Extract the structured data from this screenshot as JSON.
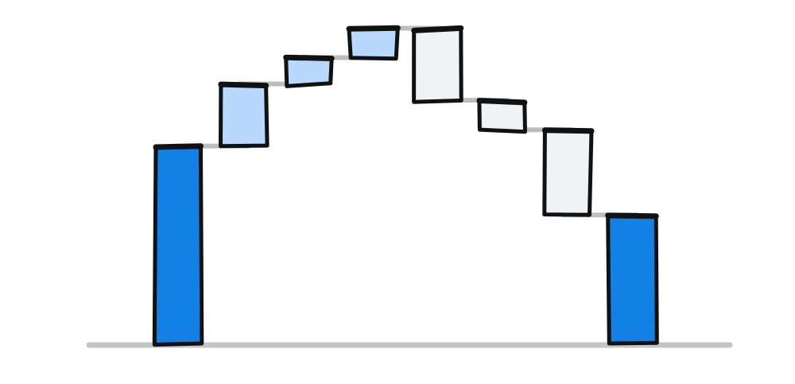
{
  "chart_data": {
    "type": "bar",
    "subtype": "waterfall",
    "style": "hand-drawn sketch",
    "title": "",
    "xlabel": "",
    "ylabel": "",
    "grid": false,
    "legend": "none",
    "ylim": [
      0,
      100
    ],
    "bars": [
      {
        "kind": "total",
        "start": 0,
        "end": 60
      },
      {
        "kind": "increase",
        "start": 60,
        "end": 79
      },
      {
        "kind": "increase",
        "start": 79,
        "end": 87
      },
      {
        "kind": "increase",
        "start": 87,
        "end": 96
      },
      {
        "kind": "decrease",
        "start": 96,
        "end": 74
      },
      {
        "kind": "decrease",
        "start": 74,
        "end": 65
      },
      {
        "kind": "decrease",
        "start": 65,
        "end": 39
      },
      {
        "kind": "total",
        "start": 0,
        "end": 39
      }
    ],
    "colors": {
      "total": "#1380e6",
      "increase": "#b8d9fd",
      "decrease": "#eef2f5",
      "outline": "#111111",
      "connector": "#bdbdbd",
      "baseline": "#c4c4c4"
    }
  }
}
